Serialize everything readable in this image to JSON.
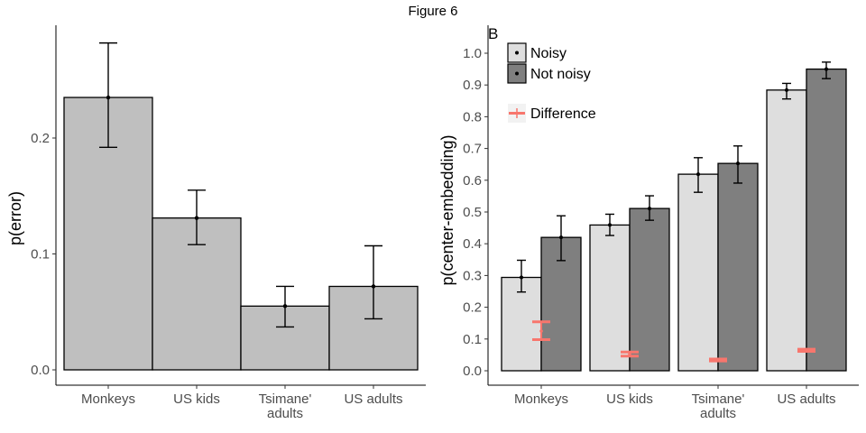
{
  "figure_title": "Figure 6",
  "chart_data": [
    {
      "type": "bar",
      "panel_label": "",
      "categories": [
        "Monkeys",
        "US kids",
        "Tsimane'\nadults",
        "US adults"
      ],
      "values": [
        0.235,
        0.131,
        0.055,
        0.072
      ],
      "error_low": [
        0.192,
        0.108,
        0.037,
        0.044
      ],
      "error_high": [
        0.282,
        0.155,
        0.072,
        0.107
      ],
      "ylabel": "p(error)",
      "xlabel": "",
      "ylim": [
        0,
        0.292
      ],
      "yticks": [
        0.0,
        0.1,
        0.2
      ],
      "ytick_labels": [
        "0.0",
        "0.1",
        "0.2"
      ],
      "bar_color": "#bfbfbf",
      "grid": false
    },
    {
      "type": "bar",
      "panel_label": "B",
      "categories": [
        "Monkeys",
        "US kids",
        "Tsimane'\nadults",
        "US adults"
      ],
      "series": [
        {
          "name": "Noisy",
          "color": "#dedede",
          "values": [
            0.294,
            0.459,
            0.619,
            0.884
          ],
          "error_low": [
            0.248,
            0.426,
            0.562,
            0.856
          ],
          "error_high": [
            0.348,
            0.493,
            0.671,
            0.905
          ]
        },
        {
          "name": "Not noisy",
          "color": "#7f7f7f",
          "values": [
            0.42,
            0.511,
            0.653,
            0.95
          ],
          "error_low": [
            0.347,
            0.474,
            0.591,
            0.92
          ],
          "error_high": [
            0.488,
            0.551,
            0.708,
            0.972
          ]
        }
      ],
      "difference": {
        "name": "Difference",
        "color": "#f8766d",
        "values": [
          0.125,
          0.052,
          0.034,
          0.064
        ],
        "error_low": [
          0.098,
          0.046,
          0.031,
          0.061
        ],
        "error_high": [
          0.154,
          0.059,
          0.037,
          0.068
        ]
      },
      "ylabel": "p(center-embedding)",
      "xlabel": "",
      "ylim": [
        -0.04,
        1.03
      ],
      "yticks": [
        0.0,
        0.1,
        0.2,
        0.3,
        0.4,
        0.5,
        0.6,
        0.7,
        0.8,
        0.9,
        1.0
      ],
      "ytick_labels": [
        "0.0",
        "0.1",
        "0.2",
        "0.3",
        "0.4",
        "0.5",
        "0.6",
        "0.7",
        "0.8",
        "0.9",
        "1.0"
      ],
      "legend_position": "top-left",
      "grid": false
    }
  ]
}
